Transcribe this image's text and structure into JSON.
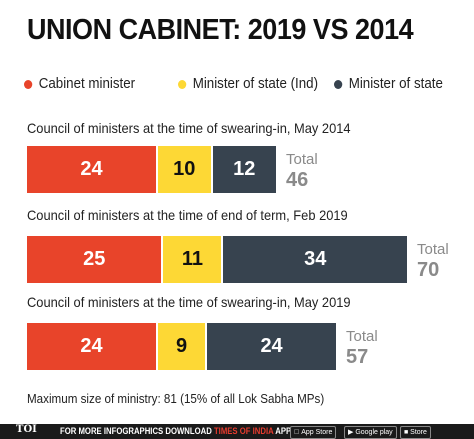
{
  "header": {
    "title": "UNION CABINET: 2019 VS 2014"
  },
  "footnote": "Maximum size of ministry: 81 (15% of all Lok Sabha MPs)",
  "footer": {
    "logo": "TOI",
    "text_prefix": "FOR MORE  INFOGRAPHICS DOWNLOAD ",
    "text_brand": "TIMES OF INDIA",
    "text_suffix": " APP",
    "app_store": "App Store",
    "google_play": "Google play",
    "windows_store": "■ Store"
  },
  "chart_data": {
    "type": "bar",
    "orientation": "horizontal",
    "stacked": true,
    "title": "UNION CABINET: 2019 VS 2014",
    "legend_position": "top",
    "total_label": "Total",
    "series": [
      {
        "name": "Cabinet minister",
        "color": "#e8442a",
        "text_color": "#ffffff"
      },
      {
        "name": "Minister of state (Ind)",
        "color": "#fdd835",
        "text_color": "#111111"
      },
      {
        "name": "Minister of state",
        "color": "#37434f",
        "text_color": "#ffffff"
      }
    ],
    "groups": [
      {
        "label": "Council of ministers at the time of swearing-in, May 2014",
        "values": [
          24,
          10,
          12
        ],
        "total": 46
      },
      {
        "label": "Council of ministers at the time of end of term, Feb 2019",
        "values": [
          25,
          11,
          34
        ],
        "total": 70
      },
      {
        "label": "Council of ministers at the time of swearing-in, May 2019",
        "values": [
          24,
          9,
          24
        ],
        "total": 57
      }
    ]
  }
}
